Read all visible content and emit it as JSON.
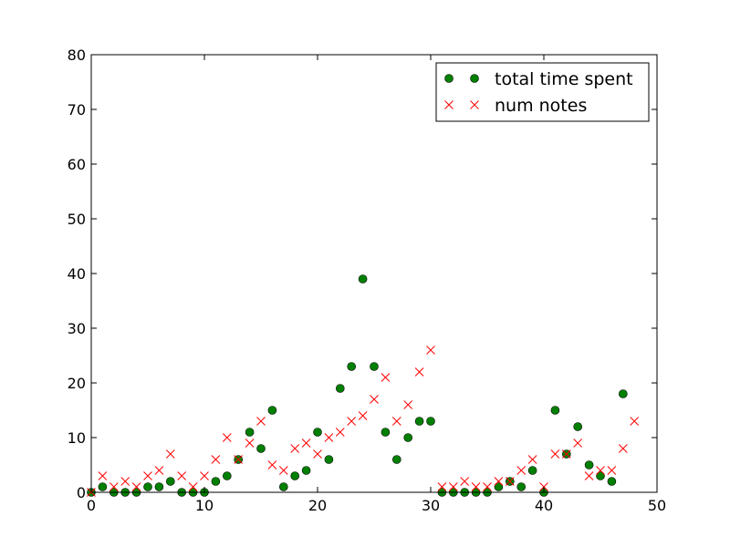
{
  "chart_data": {
    "type": "scatter",
    "title": "",
    "xlabel": "",
    "ylabel": "",
    "xlim": [
      0,
      50
    ],
    "ylim": [
      0,
      80
    ],
    "x_ticks": [
      0,
      10,
      20,
      30,
      40,
      50
    ],
    "y_ticks": [
      0,
      10,
      20,
      30,
      40,
      50,
      60,
      70,
      80
    ],
    "x_tick_labels": [
      "0",
      "10",
      "20",
      "30",
      "40",
      "50"
    ],
    "y_tick_labels": [
      "0",
      "10",
      "20",
      "30",
      "40",
      "50",
      "60",
      "70",
      "80"
    ],
    "grid": false,
    "legend": {
      "position": "top-right"
    },
    "series": [
      {
        "name": "total time spent",
        "marker": "circle",
        "color": "#008000",
        "x": [
          0,
          1,
          2,
          3,
          4,
          5,
          6,
          7,
          8,
          9,
          10,
          11,
          12,
          13,
          14,
          15,
          16,
          17,
          18,
          19,
          20,
          21,
          22,
          23,
          24,
          25,
          26,
          27,
          28,
          29,
          30,
          31,
          32,
          33,
          34,
          35,
          36,
          37,
          38,
          39,
          40,
          41,
          42,
          43,
          44,
          45,
          46,
          47
        ],
        "y": [
          0,
          1,
          0,
          0,
          0,
          1,
          1,
          2,
          0,
          0,
          0,
          2,
          3,
          6,
          11,
          8,
          15,
          1,
          3,
          4,
          11,
          6,
          19,
          23,
          39,
          23,
          11,
          6,
          10,
          13,
          13,
          0,
          0,
          0,
          0,
          0,
          1,
          2,
          1,
          4,
          0,
          15,
          7,
          12,
          5,
          3,
          2,
          18
        ]
      },
      {
        "name": "num notes",
        "marker": "x",
        "color": "#ff0000",
        "x": [
          0,
          1,
          2,
          3,
          4,
          5,
          6,
          7,
          8,
          9,
          10,
          11,
          12,
          13,
          14,
          15,
          16,
          17,
          18,
          19,
          20,
          21,
          22,
          23,
          24,
          25,
          26,
          27,
          28,
          29,
          30,
          31,
          32,
          33,
          34,
          35,
          36,
          37,
          38,
          39,
          40,
          41,
          42,
          43,
          44,
          45,
          46,
          47,
          48
        ],
        "y": [
          0,
          3,
          1,
          2,
          1,
          3,
          4,
          7,
          3,
          1,
          3,
          6,
          10,
          6,
          9,
          13,
          5,
          4,
          8,
          9,
          7,
          10,
          11,
          13,
          14,
          17,
          21,
          13,
          16,
          22,
          26,
          1,
          1,
          2,
          1,
          1,
          2,
          2,
          4,
          6,
          1,
          7,
          7,
          9,
          3,
          4,
          4,
          8,
          13
        ]
      }
    ]
  }
}
